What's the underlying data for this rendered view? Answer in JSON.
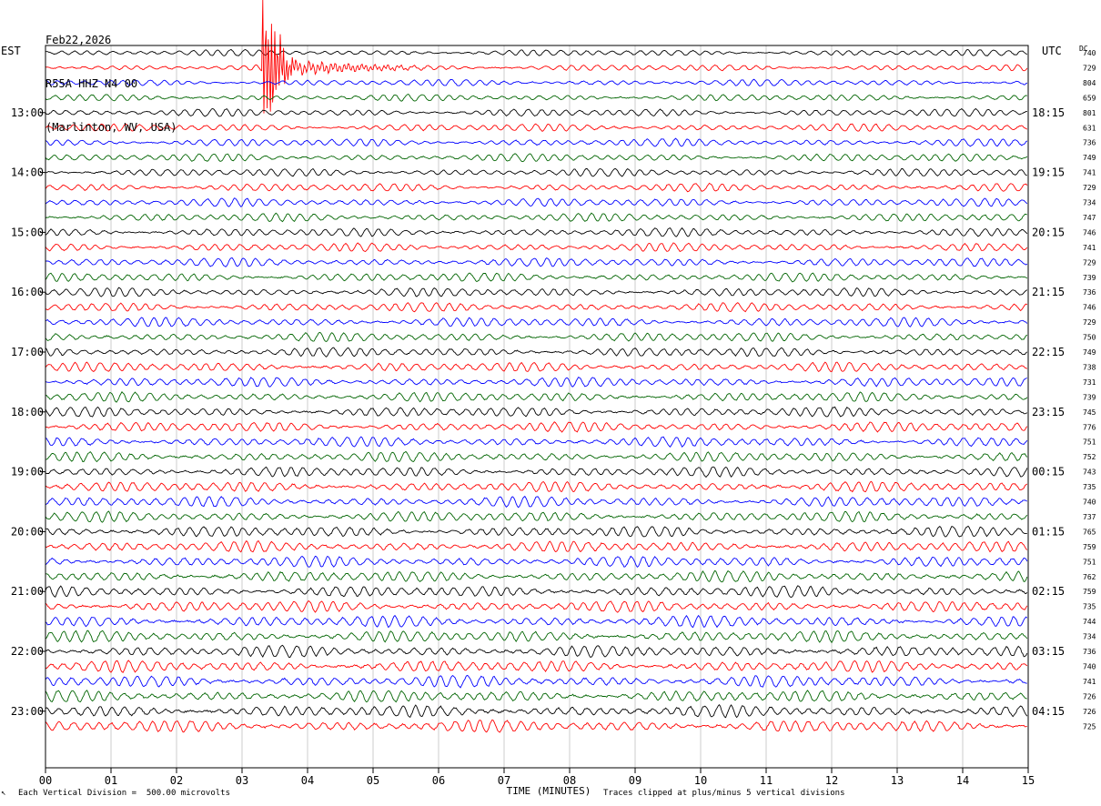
{
  "header": {
    "date": "Feb22,2026",
    "station": "R55A HHZ N4 00",
    "location": "(Marlinton, WV, USA)"
  },
  "left_timezone": "EST",
  "right_timezone": "UTC",
  "dc_label": "DC",
  "footer": {
    "vertical_division": "Each Vertical Division =  500.00 microvolts",
    "clip_note": "Traces clipped at plus/minus 5 vertical divisions"
  },
  "chart_data": {
    "type": "line",
    "xlabel": "TIME (MINUTES)",
    "xlim": [
      0,
      15
    ],
    "x_ticks": [
      "00",
      "01",
      "02",
      "03",
      "04",
      "05",
      "06",
      "07",
      "08",
      "09",
      "10",
      "11",
      "12",
      "13",
      "14",
      "15"
    ],
    "trace_colors": [
      "#000000",
      "#ff0000",
      "#0000ff",
      "#006400"
    ],
    "left_time_labels": [
      "13:00",
      "14:00",
      "15:00",
      "16:00",
      "17:00",
      "18:00",
      "19:00",
      "20:00",
      "21:00",
      "22:00",
      "23:00"
    ],
    "right_time_labels": [
      "18:15",
      "19:15",
      "20:15",
      "21:15",
      "22:15",
      "23:15",
      "00:15",
      "01:15",
      "02:15",
      "03:15",
      "04:15"
    ],
    "hour_label_first_trace_index": 4,
    "traces_per_hour": 4,
    "dc_offsets": [
      740,
      729,
      804,
      659,
      801,
      631,
      736,
      749,
      741,
      729,
      734,
      747,
      746,
      741,
      729,
      739,
      736,
      746,
      729,
      750,
      749,
      738,
      731,
      739,
      745,
      776,
      751,
      752,
      743,
      735,
      740,
      737,
      765,
      759,
      751,
      762,
      759,
      735,
      744,
      734,
      736,
      740,
      741,
      726,
      726,
      725
    ],
    "events": [
      {
        "trace_index": 1,
        "start_minute": 3.3,
        "end_minute": 3.8,
        "label": "clipped signal"
      }
    ]
  }
}
